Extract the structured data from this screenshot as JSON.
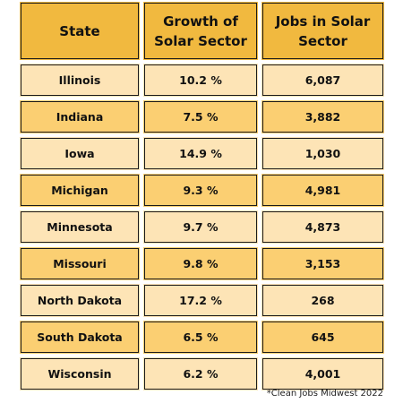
{
  "table": {
    "headers": [
      "State",
      "Growth of Solar Sector",
      "Jobs in Solar Sector"
    ],
    "rows": [
      {
        "state": "Illinois",
        "growth": "10.2 %",
        "jobs": "6,087"
      },
      {
        "state": "Indiana",
        "growth": "7.5 %",
        "jobs": "3,882"
      },
      {
        "state": "Iowa",
        "growth": "14.9 %",
        "jobs": "1,030"
      },
      {
        "state": "Michigan",
        "growth": "9.3 %",
        "jobs": "4,981"
      },
      {
        "state": "Minnesota",
        "growth": "9.7 %",
        "jobs": "4,873"
      },
      {
        "state": "Missouri",
        "growth": "9.8 %",
        "jobs": "3,153"
      },
      {
        "state": "North Dakota",
        "growth": "17.2 %",
        "jobs": "268"
      },
      {
        "state": "South Dakota",
        "growth": "6.5 %",
        "jobs": "645"
      },
      {
        "state": "Wisconsin",
        "growth": "6.2 %",
        "jobs": "4,001"
      }
    ]
  },
  "footnote": "*Clean Jobs Midwest 2022",
  "colors": {
    "header_bg": "#f1b93f",
    "row_light": "#fde4b6",
    "row_dark": "#fbcf72",
    "border": "#1a1a1a"
  }
}
